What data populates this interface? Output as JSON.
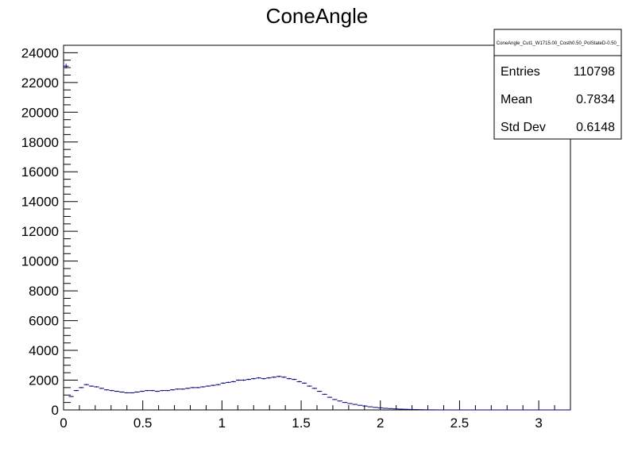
{
  "chart_data": {
    "type": "histogram",
    "title": "ConeAngle",
    "xlabel": "",
    "ylabel": "",
    "xlim": [
      0,
      3.2
    ],
    "ylim": [
      0,
      24500
    ],
    "x_ticks": [
      0,
      0.5,
      1,
      1.5,
      2,
      2.5,
      3
    ],
    "x_tick_labels": [
      "0",
      "0.5",
      "1",
      "1.5",
      "2",
      "2.5",
      "3"
    ],
    "y_ticks": [
      0,
      2000,
      4000,
      6000,
      8000,
      10000,
      12000,
      14000,
      16000,
      18000,
      20000,
      22000,
      24000
    ],
    "y_tick_labels": [
      "0",
      "2000",
      "4000",
      "6000",
      "8000",
      "10000",
      "12000",
      "14000",
      "16000",
      "18000",
      "20000",
      "22000",
      "24000"
    ],
    "grid": false,
    "bin_width": 0.032,
    "bin_edges_start": 0,
    "values": [
      23100,
      900,
      1300,
      1500,
      1700,
      1600,
      1550,
      1450,
      1350,
      1300,
      1250,
      1200,
      1150,
      1150,
      1200,
      1250,
      1300,
      1300,
      1250,
      1300,
      1300,
      1350,
      1400,
      1400,
      1450,
      1500,
      1500,
      1550,
      1600,
      1650,
      1700,
      1800,
      1850,
      1900,
      2000,
      2000,
      2050,
      2100,
      2150,
      2100,
      2150,
      2200,
      2250,
      2200,
      2100,
      2050,
      1900,
      1800,
      1600,
      1450,
      1250,
      1050,
      850,
      700,
      600,
      500,
      430,
      370,
      310,
      260,
      210,
      170,
      140,
      110,
      90,
      70,
      55,
      45,
      35,
      25,
      18,
      12,
      8,
      5,
      3,
      2,
      1,
      1,
      0,
      0,
      0,
      0,
      0,
      0,
      0,
      0,
      0,
      0,
      0,
      0,
      0,
      0,
      0,
      0,
      0,
      0,
      0,
      0,
      0,
      0
    ],
    "stats_box": {
      "name": "ConeAngle_Cut1_W1715.00_Costh0.50_PolStateD-0.50_",
      "entries_label": "Entries",
      "entries_value": "110798",
      "mean_label": "Mean",
      "mean_value": "0.7834",
      "stddev_label": "Std Dev",
      "stddev_value": "0.6148",
      "position": "top-right"
    },
    "colors": {
      "line": "#000080",
      "axis": "#000000",
      "background": "#ffffff"
    }
  }
}
